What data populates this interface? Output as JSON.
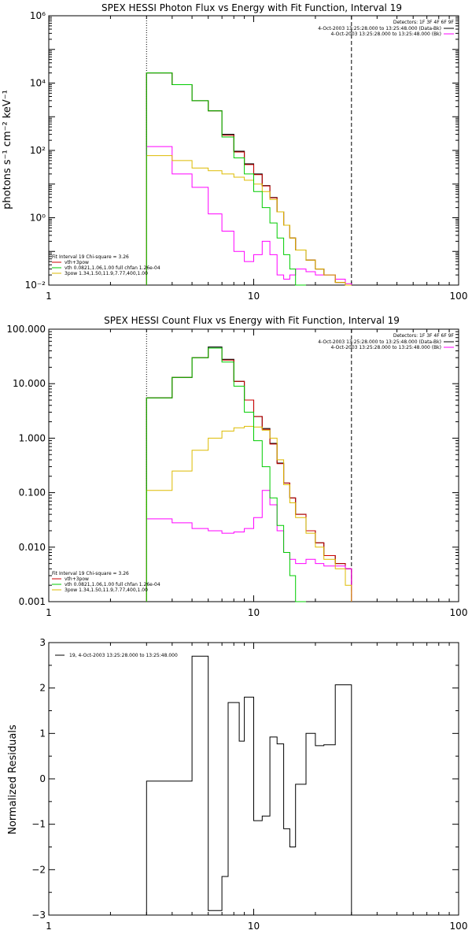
{
  "chart_data": [
    {
      "type": "line",
      "step": true,
      "title": "SPEX HESSI Photon Flux vs Energy with Fit Function, Interval 19",
      "ylabel": "photons s⁻¹ cm⁻² keV⁻¹",
      "xlabel": "",
      "xscale": "log",
      "yscale": "log",
      "xlim": [
        1,
        100
      ],
      "ylim": [
        0.01,
        1000000
      ],
      "xticks": [
        {
          "v": 1,
          "label": "1"
        },
        {
          "v": 10,
          "label": "10"
        },
        {
          "v": 100,
          "label": "100"
        }
      ],
      "yticks": [
        {
          "v": 0.01,
          "label": "10⁻²"
        },
        {
          "v": 1,
          "label": "10⁰"
        },
        {
          "v": 100,
          "label": "10²"
        },
        {
          "v": 10000,
          "label": "10⁴"
        },
        {
          "v": 1000000,
          "label": "10⁶"
        }
      ],
      "vlines": [
        {
          "x": 3,
          "style": "dotted",
          "color": "#000000"
        },
        {
          "x": 30,
          "style": "dashed",
          "color": "#000000"
        }
      ],
      "edges": [
        3.0,
        4.0,
        5.0,
        6.0,
        7.0,
        8.0,
        9.0,
        10.0,
        11.0,
        12.0,
        13.0,
        14.0,
        15.0,
        16.0,
        18.0,
        20.0,
        22.0,
        25.0,
        28.0,
        30.0
      ],
      "legend_right": {
        "header": "Detectors: 1F 3F 4F 6F 9F",
        "lines": [
          "4-Oct-2003 13:25:28.000 to 13:25:48.000 (Data-Bk)",
          "4-Oct-2003 13:25:28.000 to 13:25:48.000 (Bk)"
        ],
        "colors": [
          "#000000",
          "#ff00ff"
        ]
      },
      "legend_left": {
        "header": "Fit Interval 19   Chi-square = 3.26",
        "lines": [
          "vth+3pow",
          "vth 0.0821,1.06,1.00  full chfan 1.26e-04",
          "3pow 1.34,1.50,11.9,7.77,400,1.00"
        ],
        "colors": [
          "#cc0000",
          "#00cc00",
          "#ddbb00"
        ]
      },
      "series": [
        {
          "role": "data",
          "color": "#000000",
          "values": [
            20000,
            9000,
            3000,
            1500,
            300,
            95,
            40,
            20,
            9,
            4,
            1.5,
            0.6,
            0.25,
            0.11,
            0.055,
            0.03,
            0.02,
            0.012,
            0.01
          ]
        },
        {
          "role": "total",
          "color": "#cc0000",
          "values": [
            20000,
            9000,
            3000,
            1500,
            280,
            90,
            38,
            19,
            8.8,
            3.9,
            1.5,
            0.6,
            0.25,
            0.11,
            0.055,
            0.03,
            0.02,
            0.012,
            0.01
          ]
        },
        {
          "role": "thermal",
          "color": "#00cc00",
          "values": [
            20000,
            9000,
            3000,
            1500,
            250,
            60,
            20,
            6,
            2,
            0.7,
            0.25,
            0.08,
            0.03,
            0.008
          ]
        },
        {
          "role": "power",
          "color": "#ddbb00",
          "values": [
            70,
            50,
            30,
            25,
            20,
            16,
            13,
            10,
            6,
            3.5,
            1.5,
            0.6,
            0.25,
            0.11,
            0.055,
            0.03,
            0.02,
            0.012,
            0.01
          ]
        },
        {
          "role": "background",
          "color": "#ff00ff",
          "values": [
            130,
            20,
            8,
            1.3,
            0.4,
            0.1,
            0.05,
            0.08,
            0.2,
            0.08,
            0.02,
            0.015,
            0.02,
            0.03,
            0.025,
            0.02,
            0.02,
            0.015,
            0.011
          ]
        }
      ]
    },
    {
      "type": "line",
      "step": true,
      "title": "SPEX HESSI Count Flux vs Energy with Fit Function, Interval 19",
      "ylabel": "",
      "xlabel": "",
      "xscale": "log",
      "yscale": "log",
      "xlim": [
        1,
        100
      ],
      "ylim": [
        0.001,
        100
      ],
      "xticks": [
        {
          "v": 1,
          "label": "1"
        },
        {
          "v": 10,
          "label": "10"
        },
        {
          "v": 100,
          "label": "100"
        }
      ],
      "yticks": [
        {
          "v": 0.001,
          "label": "0.001"
        },
        {
          "v": 0.01,
          "label": "0.010"
        },
        {
          "v": 0.1,
          "label": "0.100"
        },
        {
          "v": 1,
          "label": "1.000"
        },
        {
          "v": 10,
          "label": "10.000"
        },
        {
          "v": 100,
          "label": "100.000"
        }
      ],
      "vlines": [
        {
          "x": 3,
          "style": "dotted",
          "color": "#000000"
        },
        {
          "x": 30,
          "style": "dashed",
          "color": "#000000"
        }
      ],
      "edges": [
        3.0,
        4.0,
        5.0,
        6.0,
        7.0,
        8.0,
        9.0,
        10.0,
        11.0,
        12.0,
        13.0,
        14.0,
        15.0,
        16.0,
        18.0,
        20.0,
        22.0,
        25.0,
        28.0,
        30.0
      ],
      "legend_right": {
        "header": "Detectors: 1F 3F 4F 6F 9F",
        "lines": [
          "4-Oct-2003 13:25:28.000 to 13:25:48.000 (Data-Bk)",
          "4-Oct-2003 13:25:28.000 to 13:25:48.000 (Bk)"
        ],
        "colors": [
          "#000000",
          "#ff00ff"
        ]
      },
      "legend_left": {
        "header": "Fit Interval 19   Chi-square = 3.26",
        "lines": [
          "vth+3pow",
          "vth 0.0821,1.06,1.00  full chfan 1.26e-04",
          "3pow 1.34,1.50,11.9,7.77,400,1.00"
        ],
        "colors": [
          "#cc0000",
          "#00cc00",
          "#ddbb00"
        ]
      },
      "series": [
        {
          "role": "data",
          "color": "#000000",
          "values": [
            5.5,
            13,
            30,
            47,
            28,
            11,
            5,
            2.5,
            1.5,
            0.8,
            0.35,
            0.15,
            0.08,
            0.04,
            0.02,
            0.012,
            0.007,
            0.005,
            0.004
          ]
        },
        {
          "role": "total",
          "color": "#cc0000",
          "values": [
            5.5,
            13,
            30,
            45,
            27,
            11,
            5,
            2.5,
            1.45,
            0.78,
            0.34,
            0.15,
            0.08,
            0.04,
            0.02,
            0.012,
            0.007,
            0.005,
            0.004
          ]
        },
        {
          "role": "thermal",
          "color": "#00cc00",
          "values": [
            5.5,
            13,
            30,
            45,
            25,
            9,
            3,
            0.9,
            0.3,
            0.08,
            0.025,
            0.008,
            0.003,
            0.001
          ]
        },
        {
          "role": "power",
          "color": "#ddbb00",
          "values": [
            0.11,
            0.25,
            0.6,
            1.0,
            1.35,
            1.55,
            1.65,
            1.6,
            1.4,
            1.0,
            0.4,
            0.14,
            0.065,
            0.035,
            0.018,
            0.01,
            0.006,
            0.004,
            0.002
          ]
        },
        {
          "role": "background",
          "color": "#ff00ff",
          "values": [
            0.033,
            0.028,
            0.022,
            0.02,
            0.018,
            0.019,
            0.022,
            0.035,
            0.11,
            0.06,
            0.02,
            0.008,
            0.006,
            0.005,
            0.006,
            0.005,
            0.0045,
            0.0045,
            0.004
          ]
        }
      ]
    },
    {
      "type": "line",
      "step": true,
      "title": "",
      "ylabel": "Normalized Residuals",
      "xlabel": "",
      "xscale": "log",
      "yscale": "linear",
      "xlim": [
        1,
        100
      ],
      "ylim": [
        -3,
        3
      ],
      "xticks": [
        {
          "v": 1,
          "label": "1"
        },
        {
          "v": 10,
          "label": "10"
        },
        {
          "v": 100,
          "label": "100"
        }
      ],
      "yticks": [
        {
          "v": -3,
          "label": "−3"
        },
        {
          "v": -2,
          "label": "−2"
        },
        {
          "v": -1,
          "label": "−1"
        },
        {
          "v": 0,
          "label": "0"
        },
        {
          "v": 1,
          "label": "1"
        },
        {
          "v": 2,
          "label": "2"
        },
        {
          "v": 3,
          "label": "3"
        }
      ],
      "vlines": [],
      "edges": [
        3.0,
        4.0,
        5.0,
        6.0,
        7.0,
        7.5,
        8.0,
        8.5,
        9.0,
        10.0,
        11.0,
        12.0,
        13.0,
        14.0,
        15.0,
        16.0,
        18.0,
        20.0,
        22.0,
        25.0,
        28.0,
        30.0
      ],
      "legend_left": {
        "header": "",
        "lines": [
          "19,  4-Oct-2003 13:25:28.000 to 13:25:48.000"
        ],
        "colors": [
          "#000000"
        ]
      },
      "series": [
        {
          "role": "residuals",
          "color": "#000000",
          "values": [
            -0.05,
            -0.05,
            2.7,
            -2.9,
            -2.15,
            1.68,
            1.68,
            0.83,
            1.8,
            -0.92,
            -0.82,
            0.92,
            0.77,
            -1.1,
            -1.5,
            -0.12,
            1.0,
            0.73,
            0.75,
            2.07,
            2.07
          ]
        }
      ]
    }
  ]
}
